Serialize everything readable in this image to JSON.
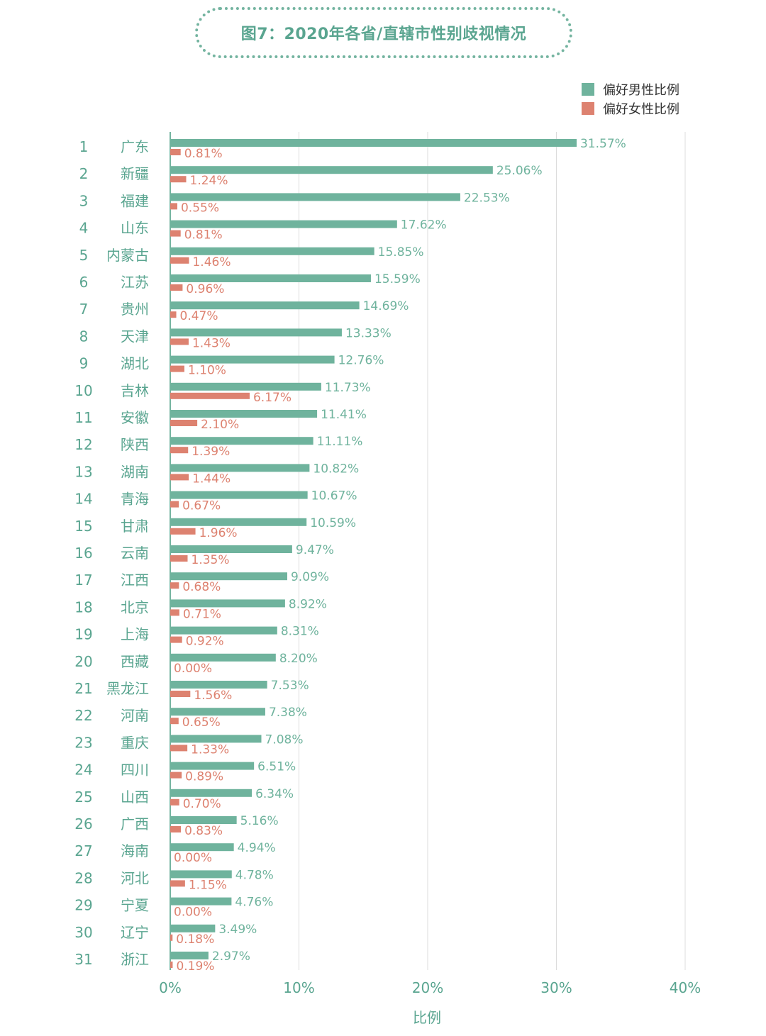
{
  "colors": {
    "male": "#6fb39d",
    "female": "#dd8270",
    "text": "#5aa590",
    "grid": "#dcdcdc",
    "axis": "#74b4a0"
  },
  "chart_data": {
    "type": "bar",
    "orientation": "horizontal",
    "title": "图7：2020年各省/直辖市性别歧视情况",
    "xlabel": "比例",
    "xlim": [
      0,
      40
    ],
    "xticks": [
      "0%",
      "10%",
      "20%",
      "30%",
      "40%"
    ],
    "xtick_values": [
      0,
      10,
      20,
      30,
      40
    ],
    "legend_position": "top-right",
    "grid": true,
    "ranks": [
      "1",
      "2",
      "3",
      "4",
      "5",
      "6",
      "7",
      "8",
      "9",
      "10",
      "11",
      "12",
      "13",
      "14",
      "15",
      "16",
      "17",
      "18",
      "19",
      "20",
      "21",
      "22",
      "23",
      "24",
      "25",
      "26",
      "27",
      "28",
      "29",
      "30",
      "31"
    ],
    "categories": [
      "广东",
      "新疆",
      "福建",
      "山东",
      "内蒙古",
      "江苏",
      "贵州",
      "天津",
      "湖北",
      "吉林",
      "安徽",
      "陕西",
      "湖南",
      "青海",
      "甘肃",
      "云南",
      "江西",
      "北京",
      "上海",
      "西藏",
      "黑龙江",
      "河南",
      "重庆",
      "四川",
      "山西",
      "广西",
      "海南",
      "河北",
      "宁夏",
      "辽宁",
      "浙江"
    ],
    "series": [
      {
        "name": "偏好男性比例",
        "values": [
          31.57,
          25.06,
          22.53,
          17.62,
          15.85,
          15.59,
          14.69,
          13.33,
          12.76,
          11.73,
          11.41,
          11.11,
          10.82,
          10.67,
          10.59,
          9.47,
          9.09,
          8.92,
          8.31,
          8.2,
          7.53,
          7.38,
          7.08,
          6.51,
          6.34,
          5.16,
          4.94,
          4.78,
          4.76,
          3.49,
          2.97
        ],
        "labels": [
          "31.57%",
          "25.06%",
          "22.53%",
          "17.62%",
          "15.85%",
          "15.59%",
          "14.69%",
          "13.33%",
          "12.76%",
          "11.73%",
          "11.41%",
          "11.11%",
          "10.82%",
          "10.67%",
          "10.59%",
          "9.47%",
          "9.09%",
          "8.92%",
          "8.31%",
          "8.20%",
          "7.53%",
          "7.38%",
          "7.08%",
          "6.51%",
          "6.34%",
          "5.16%",
          "4.94%",
          "4.78%",
          "4.76%",
          "3.49%",
          "2.97%"
        ]
      },
      {
        "name": "偏好女性比例",
        "values": [
          0.81,
          1.24,
          0.55,
          0.81,
          1.46,
          0.96,
          0.47,
          1.43,
          1.1,
          6.17,
          2.1,
          1.39,
          1.44,
          0.67,
          1.96,
          1.35,
          0.68,
          0.71,
          0.92,
          0.0,
          1.56,
          0.65,
          1.33,
          0.89,
          0.7,
          0.83,
          0.0,
          1.15,
          0.0,
          0.18,
          0.19
        ],
        "labels": [
          "0.81%",
          "1.24%",
          "0.55%",
          "0.81%",
          "1.46%",
          "0.96%",
          "0.47%",
          "1.43%",
          "1.10%",
          "6.17%",
          "2.10%",
          "1.39%",
          "1.44%",
          "0.67%",
          "1.96%",
          "1.35%",
          "0.68%",
          "0.71%",
          "0.92%",
          "0.00%",
          "1.56%",
          "0.65%",
          "1.33%",
          "0.89%",
          "0.70%",
          "0.83%",
          "0.00%",
          "1.15%",
          "0.00%",
          "0.18%",
          "0.19%"
        ]
      }
    ]
  }
}
